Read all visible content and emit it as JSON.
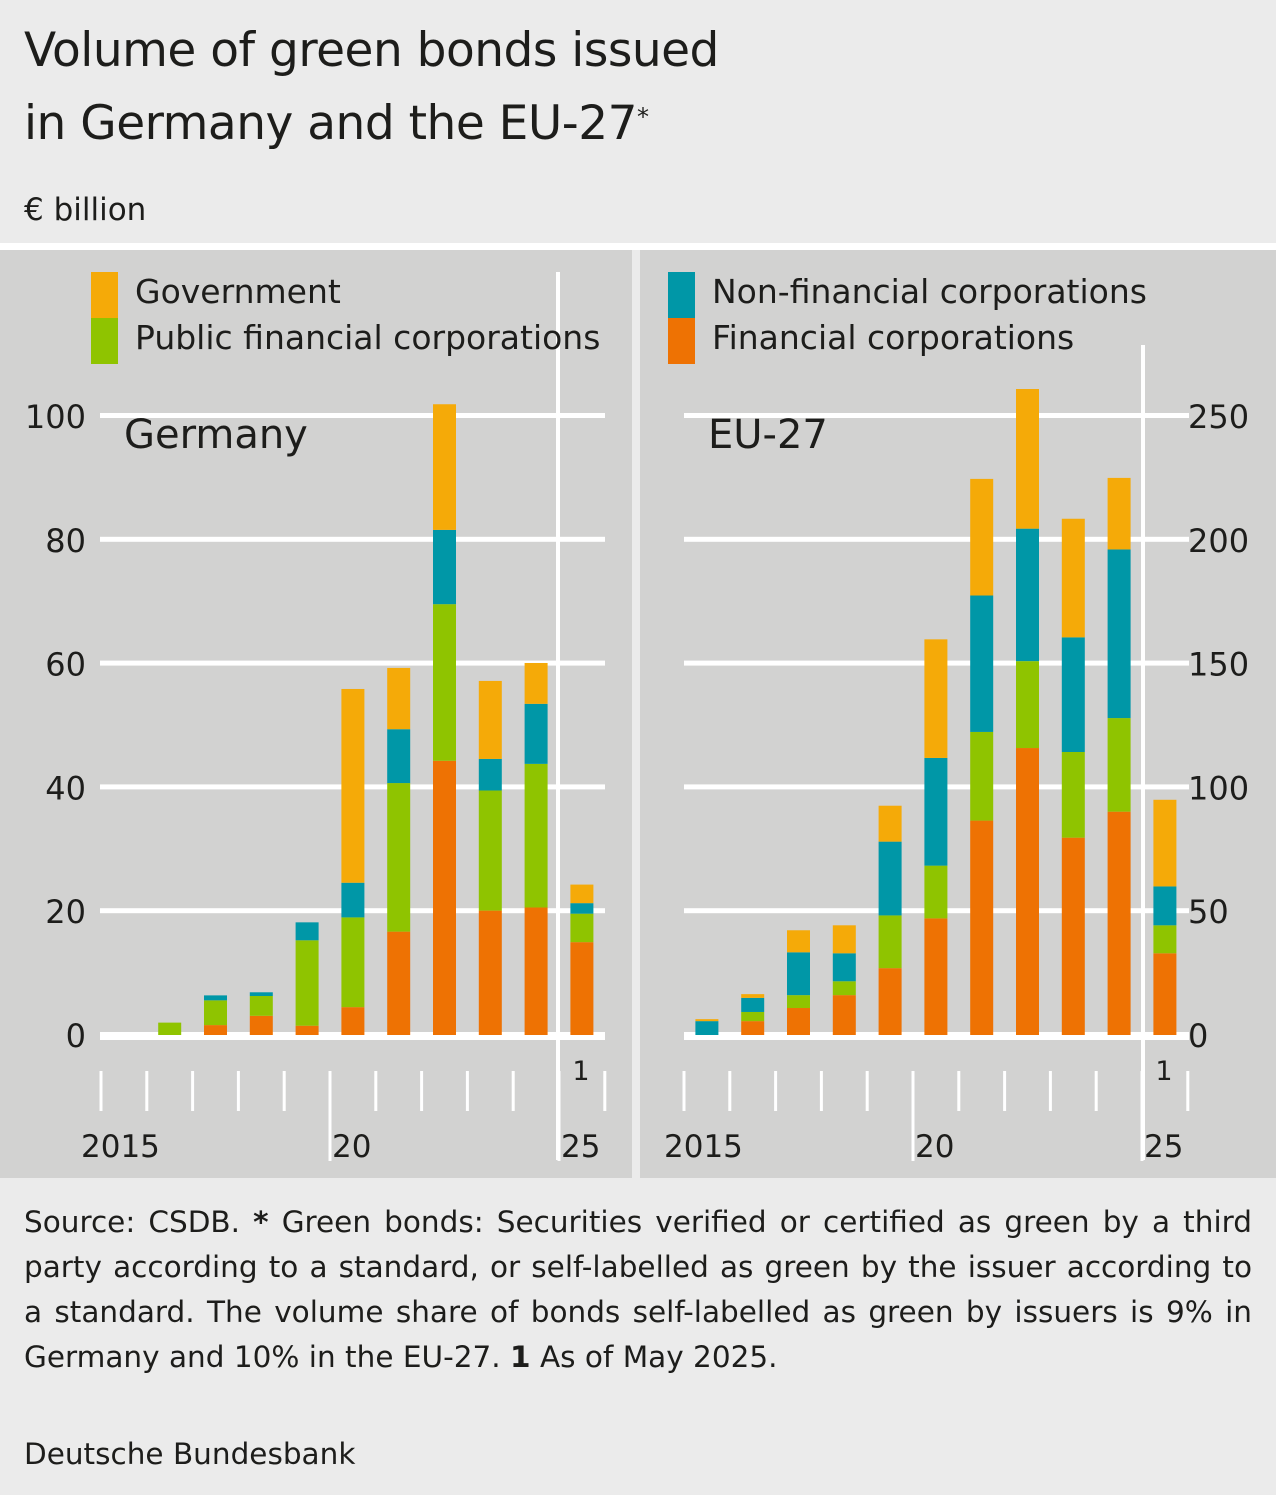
{
  "header": {
    "title_line1": "Volume of green bonds issued",
    "title_line2": "in Germany and the EU-27",
    "title_mark": "*",
    "unit": "€ billion"
  },
  "legend": {
    "government": {
      "label": "Government",
      "color": "#f5aa08"
    },
    "public_financial": {
      "label": "Public financial corporations",
      "color": "#8fc400"
    },
    "non_financial": {
      "label": "Non-financial corporations",
      "color": "#0097a7"
    },
    "financial": {
      "label": "Financial corporations",
      "color": "#ee7203"
    }
  },
  "footer": {
    "source": "Source: CSDB.",
    "star": "*",
    "note": "Green bonds: Securities verified or certified as green by a third party according to a standard, or self-labelled as green by the is­suer according to a standard. The volume share of bonds self-labelled as green by issuers is 9% in Germany and 10% in the EU-27.",
    "footnote_mark": "1",
    "footnote_text": "As of May 2025.",
    "credit": "Deutsche Bundesbank"
  },
  "chart_data": [
    {
      "type": "bar",
      "stacked": true,
      "title": "Germany",
      "unit": "€ billion",
      "categories": [
        "2015",
        "2016",
        "2017",
        "2018",
        "2019",
        "2020",
        "2021",
        "2022",
        "2023",
        "2024",
        "2025"
      ],
      "x_tick_labels": [
        "2015",
        "20",
        "25"
      ],
      "footnote_category": "2025",
      "footnote_label": "1",
      "ylim": [
        0,
        100
      ],
      "yticks": [
        0,
        20,
        40,
        60,
        80,
        100
      ],
      "ytick_labels": [
        "0",
        "20",
        "40",
        "60",
        "80",
        "100"
      ],
      "y_axis_side": "left",
      "grid": true,
      "series": [
        {
          "name": "Financial corporations",
          "key": "financial",
          "values": [
            0,
            0,
            1.6,
            3.1,
            1.5,
            4.5,
            16.7,
            44.3,
            20.1,
            20.6,
            15.0
          ]
        },
        {
          "name": "Public financial corporations",
          "key": "public_financial",
          "values": [
            0,
            2.0,
            4.0,
            3.2,
            13.8,
            14.5,
            24.0,
            25.3,
            19.4,
            23.2,
            4.6
          ]
        },
        {
          "name": "Non-financial corporations",
          "key": "non_financial",
          "values": [
            0,
            0,
            0.8,
            0.6,
            2.9,
            5.6,
            8.7,
            12.0,
            5.1,
            9.7,
            1.7
          ]
        },
        {
          "name": "Government",
          "key": "government",
          "values": [
            0,
            0,
            0,
            0,
            0,
            31.3,
            9.9,
            20.3,
            12.6,
            6.6,
            3.0
          ]
        }
      ]
    },
    {
      "type": "bar",
      "stacked": true,
      "title": "EU-27",
      "unit": "€ billion",
      "categories": [
        "2015",
        "2016",
        "2017",
        "2018",
        "2019",
        "2020",
        "2021",
        "2022",
        "2023",
        "2024",
        "2025"
      ],
      "x_tick_labels": [
        "2015",
        "20",
        "25"
      ],
      "footnote_category": "2025",
      "footnote_label": "1",
      "ylim": [
        0,
        250
      ],
      "yticks": [
        0,
        50,
        100,
        150,
        200,
        250
      ],
      "ytick_labels": [
        "0",
        "50",
        "100",
        "150",
        "200",
        "250"
      ],
      "y_axis_side": "right",
      "grid": true,
      "series": [
        {
          "name": "Financial corporations",
          "key": "financial",
          "values": [
            0,
            5.6,
            10.9,
            16.1,
            27.0,
            47.1,
            86.6,
            115.9,
            79.7,
            90.2,
            33.0
          ]
        },
        {
          "name": "Public financial corporations",
          "key": "public_financial",
          "values": [
            0,
            3.7,
            5.2,
            5.6,
            21.3,
            21.3,
            35.8,
            35.1,
            34.6,
            37.8,
            11.3
          ]
        },
        {
          "name": "Non-financial corporations",
          "key": "non_financial",
          "values": [
            5.6,
            5.7,
            17.3,
            11.3,
            29.8,
            43.5,
            55.1,
            53.5,
            46.3,
            68.1,
            15.7
          ]
        },
        {
          "name": "Government",
          "key": "government",
          "values": [
            0.8,
            1.5,
            8.9,
            11.3,
            14.5,
            47.9,
            47.1,
            56.4,
            47.9,
            28.9,
            35.0
          ]
        }
      ]
    }
  ]
}
